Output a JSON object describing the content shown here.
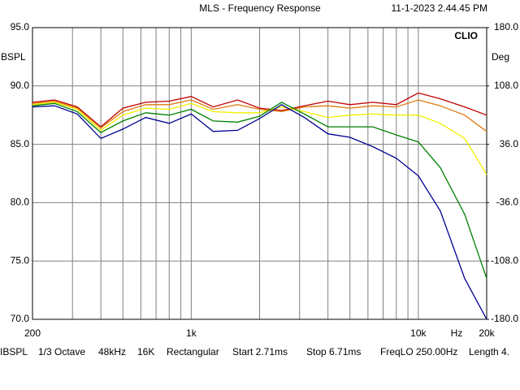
{
  "chart_data": {
    "type": "line",
    "title": "MLS - Frequency Response",
    "timestamp": "11-1-2023 2.44.45 PM",
    "brand": "CLIO",
    "ylabel": "BSPL",
    "y2label": "Deg",
    "xlabel": "Hz",
    "x": [
      200,
      250,
      315,
      400,
      500,
      630,
      800,
      1000,
      1250,
      1600,
      2000,
      2500,
      3150,
      4000,
      5000,
      6300,
      8000,
      10000,
      12500,
      16000,
      20000
    ],
    "series": [
      {
        "color": "#c00000",
        "values": [
          88.6,
          88.8,
          88.2,
          86.5,
          88.1,
          88.6,
          88.7,
          89.1,
          88.2,
          88.8,
          88.1,
          87.9,
          88.3,
          88.7,
          88.4,
          88.6,
          88.4,
          89.4,
          88.9,
          88.2,
          87.5
        ]
      },
      {
        "color": "#e07a10",
        "values": [
          88.5,
          88.7,
          88.1,
          86.4,
          87.8,
          88.4,
          88.4,
          88.8,
          88.0,
          88.4,
          88.0,
          87.8,
          88.2,
          88.3,
          88.1,
          88.3,
          88.2,
          88.8,
          88.3,
          87.5,
          86.1
        ]
      },
      {
        "color": "#f0f000",
        "values": [
          88.4,
          88.6,
          88.0,
          86.2,
          87.5,
          88.1,
          88.0,
          88.5,
          87.8,
          87.7,
          87.7,
          88.2,
          87.8,
          87.3,
          87.5,
          87.6,
          87.5,
          87.5,
          86.8,
          85.5,
          82.4
        ]
      },
      {
        "color": "#008000",
        "values": [
          88.3,
          88.5,
          87.8,
          86.0,
          87.0,
          87.7,
          87.5,
          88.0,
          87.0,
          86.9,
          87.4,
          88.6,
          87.6,
          86.5,
          86.5,
          86.5,
          85.8,
          85.2,
          83.0,
          79.0,
          73.5
        ]
      },
      {
        "color": "#000090",
        "values": [
          88.2,
          88.3,
          87.6,
          85.5,
          86.3,
          87.3,
          86.8,
          87.6,
          86.1,
          86.2,
          87.2,
          88.4,
          87.3,
          85.9,
          85.6,
          84.8,
          83.8,
          82.3,
          79.3,
          73.5,
          70.0
        ]
      }
    ],
    "xscale": "log",
    "xlim": [
      200,
      20000
    ],
    "xticks": [
      200,
      {
        "value": 1000,
        "label": "1k"
      },
      {
        "value": 10000,
        "label": "10k"
      },
      {
        "value": 20000,
        "label": "20k"
      }
    ],
    "xminor": [
      300,
      400,
      500,
      600,
      700,
      800,
      900,
      2000,
      3000,
      4000,
      5000,
      6000,
      7000,
      8000,
      9000
    ],
    "ylim": [
      70,
      95
    ],
    "yticks": [
      {
        "value": 95,
        "label": "95.0"
      },
      {
        "value": 90,
        "label": "90.0"
      },
      {
        "value": 85,
        "label": "85.0"
      },
      {
        "value": 80,
        "label": "80.0"
      },
      {
        "value": 75,
        "label": "75.0"
      },
      {
        "value": 70,
        "label": "70.0"
      }
    ],
    "y2lim": [
      -180,
      180
    ],
    "y2ticks": [
      {
        "value": 180,
        "label": "180.0"
      },
      {
        "value": 108,
        "label": "108.0"
      },
      {
        "value": 36,
        "label": "36.0"
      },
      {
        "value": -36,
        "label": "-36.0"
      },
      {
        "value": -108,
        "label": "-108.0"
      },
      {
        "value": -180,
        "label": "-180.0"
      }
    ],
    "grid": true,
    "status": [
      "IBSPL",
      "1/3 Octave",
      "48kHz",
      "16K",
      "Rectangular",
      "Start 2.71ms",
      "Stop 6.71ms",
      "FreqLO 250.00Hz",
      "Length 4."
    ]
  }
}
